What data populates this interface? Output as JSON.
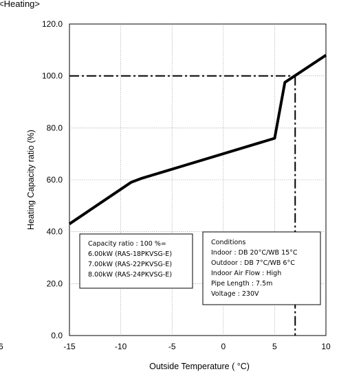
{
  "header": {
    "section_label": "<Heating>"
  },
  "stray_label": "6",
  "chart_data": {
    "type": "line",
    "xlabel": "Outside Temperature ( °C)",
    "ylabel": "Heating Capacity ratio (%)",
    "xlim": [
      -15,
      10
    ],
    "ylim": [
      0,
      120
    ],
    "x_ticks": [
      -15,
      -10,
      -5,
      0,
      5,
      10
    ],
    "x_tick_labels": [
      "-15",
      "-10",
      "-5",
      "0",
      "5",
      "10"
    ],
    "y_ticks": [
      0,
      20,
      40,
      60,
      80,
      100,
      120
    ],
    "y_tick_labels": [
      "0.0",
      "20.0",
      "40.0",
      "60.0",
      "80.0",
      "100.0",
      "120.0"
    ],
    "grid": true,
    "series": [
      {
        "x": [
          -15,
          -9,
          -8,
          5,
          6,
          10
        ],
        "y": [
          43,
          59,
          60.5,
          76,
          97.5,
          108
        ],
        "color": "#000000"
      }
    ],
    "reference_lines": [
      {
        "type": "horizontal",
        "y": 100,
        "x_from": -15,
        "x_to": 7
      },
      {
        "type": "vertical",
        "x": 7,
        "y_from": 0,
        "y_to": 100
      }
    ],
    "annotations": {
      "capacity_box": [
        "Capacity ratio : 100 %=",
        "6.00kW (RAS-18PKVSG-E)",
        "7.00kW (RAS-22PKVSG-E)",
        "8.00kW (RAS-24PKVSG-E)"
      ],
      "conditions_box": [
        "Conditions",
        "Indoor : DB 20°C/WB 15°C",
        "Outdoor : DB 7°C/WB 6°C",
        "Indoor Air Flow : High",
        "Pipe Length : 7.5m",
        "Voltage : 230V"
      ]
    }
  }
}
